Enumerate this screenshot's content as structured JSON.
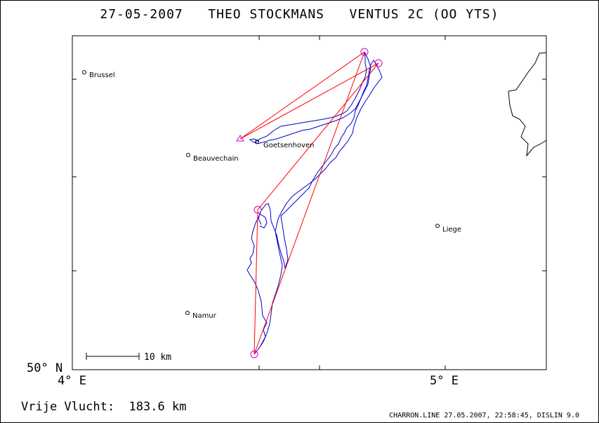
{
  "header": {
    "date": "27-05-2007",
    "pilot": "THEO STOCKMANS",
    "glider": "VENTUS 2C (OO YTS)"
  },
  "axes": {
    "lat_label": "50° N",
    "lon_left": "4° E",
    "lon_right": "5° E"
  },
  "cities": [
    {
      "name": "Brussel"
    },
    {
      "name": "Beauvechain"
    },
    {
      "name": "Goetsenhoven"
    },
    {
      "name": "Liege"
    },
    {
      "name": "Namur"
    }
  ],
  "scale": {
    "label": "10 km"
  },
  "footer": {
    "flight_type": "Vrije Vlucht:",
    "distance": "183.6 km",
    "credit": "CHARRON.LINE 27.05.2007, 22:58:45, DISLIN 9.0"
  },
  "colors": {
    "track": "#0000cc",
    "task": "#ff0000",
    "turnpoint": "#cc00cc",
    "border": "#000000"
  }
}
